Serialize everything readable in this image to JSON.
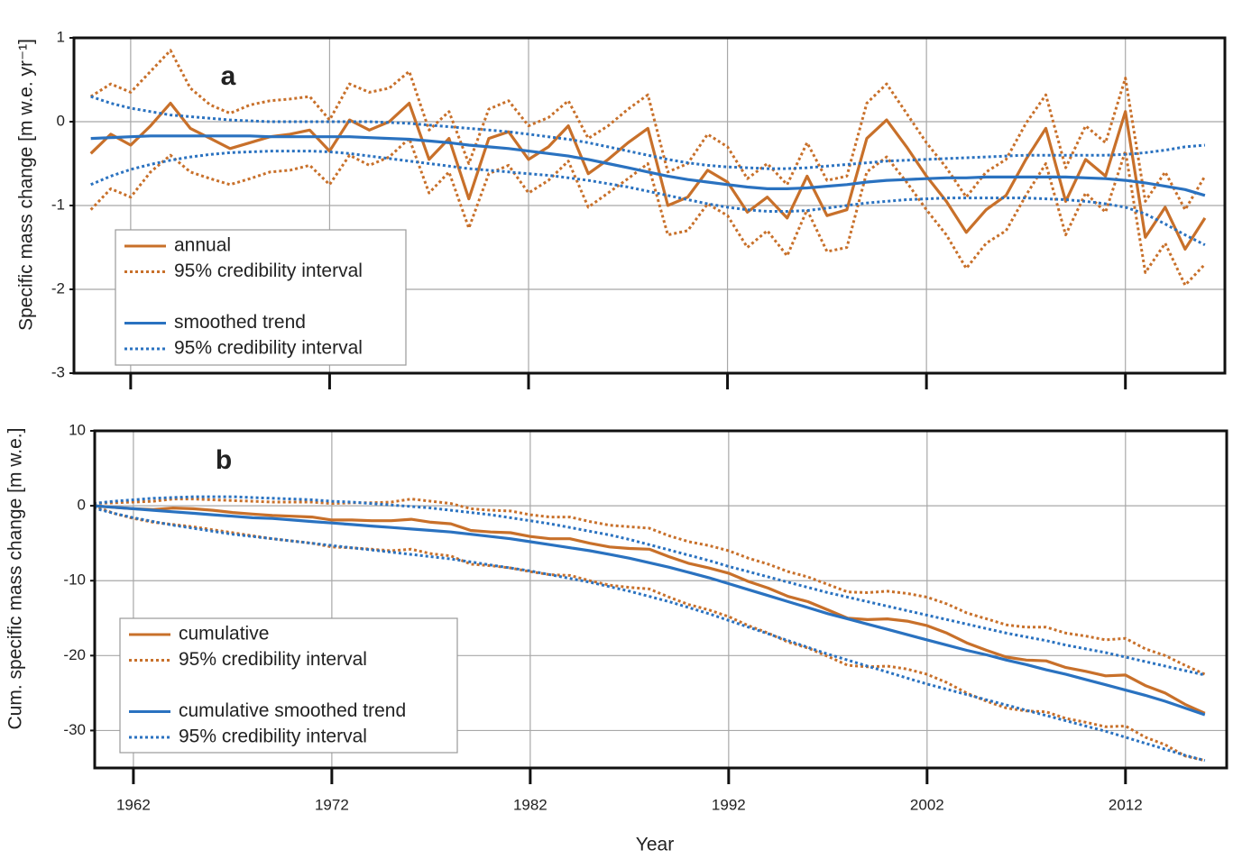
{
  "chart_data": [
    {
      "type": "line",
      "label": "a",
      "ylabel": "Specific mass change [m w.e. yr⁻¹]",
      "x": [
        1960,
        1961,
        1962,
        1963,
        1964,
        1965,
        1966,
        1967,
        1968,
        1969,
        1970,
        1971,
        1972,
        1973,
        1974,
        1975,
        1976,
        1977,
        1978,
        1979,
        1980,
        1981,
        1982,
        1983,
        1984,
        1985,
        1986,
        1987,
        1988,
        1989,
        1990,
        1991,
        1992,
        1993,
        1994,
        1995,
        1996,
        1997,
        1998,
        1999,
        2000,
        2001,
        2002,
        2003,
        2004,
        2005,
        2006,
        2007,
        2008,
        2009,
        2010,
        2011,
        2012,
        2013,
        2014,
        2015,
        2016
      ],
      "xlim": [
        1959.15,
        2017
      ],
      "xticks": [
        1962,
        1972,
        1982,
        1992,
        2002,
        2012
      ],
      "ylim": [
        -3,
        1
      ],
      "yticks": [
        1,
        0,
        -1,
        -2,
        -3
      ],
      "grid": true,
      "legend": "lower left",
      "series": [
        {
          "name": "annual",
          "color": "#c8702a",
          "style": "solid",
          "values": [
            -0.38,
            -0.15,
            -0.28,
            -0.05,
            0.22,
            -0.08,
            -0.2,
            -0.32,
            -0.25,
            -0.18,
            -0.15,
            -0.1,
            -0.35,
            0.02,
            -0.1,
            0.0,
            0.22,
            -0.45,
            -0.2,
            -0.92,
            -0.2,
            -0.12,
            -0.45,
            -0.3,
            -0.05,
            -0.62,
            -0.45,
            -0.25,
            -0.08,
            -1.0,
            -0.9,
            -0.58,
            -0.72,
            -1.08,
            -0.9,
            -1.15,
            -0.65,
            -1.12,
            -1.05,
            -0.2,
            0.02,
            -0.3,
            -0.65,
            -0.95,
            -1.32,
            -1.05,
            -0.88,
            -0.45,
            -0.08,
            -0.95,
            -0.45,
            -0.65,
            0.12,
            -1.38,
            -1.02,
            -1.52,
            -1.15
          ]
        },
        {
          "name": "95% credibility interval",
          "color": "#c8702a",
          "style": "dotted",
          "values": [
            0.3,
            0.45,
            0.35,
            0.6,
            0.85,
            0.4,
            0.2,
            0.1,
            0.2,
            0.25,
            0.27,
            0.3,
            0.02,
            0.45,
            0.35,
            0.4,
            0.6,
            -0.1,
            0.12,
            -0.5,
            0.15,
            0.25,
            -0.05,
            0.05,
            0.25,
            -0.2,
            -0.05,
            0.15,
            0.32,
            -0.6,
            -0.5,
            -0.15,
            -0.3,
            -0.68,
            -0.5,
            -0.75,
            -0.25,
            -0.7,
            -0.65,
            0.22,
            0.45,
            0.1,
            -0.25,
            -0.55,
            -0.9,
            -0.6,
            -0.45,
            -0.02,
            0.32,
            -0.55,
            -0.05,
            -0.25,
            0.52,
            -0.95,
            -0.6,
            -1.05,
            -0.65
          ]
        },
        {
          "color": "#c8702a",
          "style": "dotted",
          "values": [
            -1.05,
            -0.8,
            -0.9,
            -0.6,
            -0.4,
            -0.6,
            -0.68,
            -0.75,
            -0.68,
            -0.6,
            -0.58,
            -0.52,
            -0.75,
            -0.4,
            -0.52,
            -0.42,
            -0.2,
            -0.85,
            -0.6,
            -1.27,
            -0.62,
            -0.52,
            -0.85,
            -0.7,
            -0.47,
            -1.02,
            -0.85,
            -0.68,
            -0.5,
            -1.35,
            -1.3,
            -0.98,
            -1.12,
            -1.5,
            -1.3,
            -1.6,
            -1.05,
            -1.55,
            -1.5,
            -0.6,
            -0.42,
            -0.72,
            -1.05,
            -1.35,
            -1.75,
            -1.45,
            -1.3,
            -0.88,
            -0.5,
            -1.35,
            -0.85,
            -1.08,
            -0.35,
            -1.8,
            -1.45,
            -1.95,
            -1.7
          ]
        },
        {
          "name": "smoothed trend",
          "color": "#2a72c0",
          "style": "solid",
          "values": [
            -0.2,
            -0.19,
            -0.18,
            -0.17,
            -0.17,
            -0.17,
            -0.17,
            -0.17,
            -0.17,
            -0.18,
            -0.18,
            -0.18,
            -0.18,
            -0.18,
            -0.19,
            -0.2,
            -0.21,
            -0.23,
            -0.25,
            -0.28,
            -0.3,
            -0.32,
            -0.35,
            -0.38,
            -0.41,
            -0.45,
            -0.5,
            -0.55,
            -0.6,
            -0.65,
            -0.69,
            -0.72,
            -0.75,
            -0.78,
            -0.8,
            -0.8,
            -0.79,
            -0.77,
            -0.75,
            -0.72,
            -0.7,
            -0.69,
            -0.68,
            -0.67,
            -0.67,
            -0.66,
            -0.66,
            -0.66,
            -0.66,
            -0.66,
            -0.67,
            -0.68,
            -0.7,
            -0.73,
            -0.77,
            -0.81,
            -0.88
          ]
        },
        {
          "name": "95% credibility interval",
          "color": "#2a72c0",
          "style": "dotted",
          "values": [
            0.3,
            0.22,
            0.16,
            0.12,
            0.08,
            0.06,
            0.04,
            0.02,
            0.01,
            0.0,
            0.0,
            0.0,
            0.0,
            0.0,
            0.0,
            -0.01,
            -0.02,
            -0.04,
            -0.06,
            -0.08,
            -0.1,
            -0.12,
            -0.15,
            -0.18,
            -0.21,
            -0.25,
            -0.3,
            -0.35,
            -0.4,
            -0.45,
            -0.49,
            -0.52,
            -0.54,
            -0.55,
            -0.56,
            -0.56,
            -0.55,
            -0.53,
            -0.51,
            -0.49,
            -0.47,
            -0.46,
            -0.45,
            -0.44,
            -0.43,
            -0.42,
            -0.41,
            -0.4,
            -0.4,
            -0.4,
            -0.4,
            -0.4,
            -0.39,
            -0.37,
            -0.34,
            -0.3,
            -0.28
          ]
        },
        {
          "color": "#2a72c0",
          "style": "dotted",
          "values": [
            -0.75,
            -0.65,
            -0.57,
            -0.51,
            -0.46,
            -0.42,
            -0.39,
            -0.37,
            -0.36,
            -0.35,
            -0.35,
            -0.35,
            -0.36,
            -0.38,
            -0.41,
            -0.44,
            -0.47,
            -0.5,
            -0.53,
            -0.56,
            -0.58,
            -0.6,
            -0.62,
            -0.64,
            -0.67,
            -0.7,
            -0.74,
            -0.78,
            -0.83,
            -0.88,
            -0.93,
            -0.98,
            -1.02,
            -1.05,
            -1.07,
            -1.07,
            -1.06,
            -1.03,
            -1.0,
            -0.97,
            -0.95,
            -0.93,
            -0.92,
            -0.91,
            -0.91,
            -0.91,
            -0.91,
            -0.91,
            -0.92,
            -0.93,
            -0.95,
            -0.98,
            -1.02,
            -1.1,
            -1.22,
            -1.35,
            -1.47
          ]
        }
      ]
    },
    {
      "type": "line",
      "label": "b",
      "ylabel": "Cum. specific mass change [m w.e.]",
      "xlabel": "Year",
      "x": [
        1960,
        1961,
        1962,
        1963,
        1964,
        1965,
        1966,
        1967,
        1968,
        1969,
        1970,
        1971,
        1972,
        1973,
        1974,
        1975,
        1976,
        1977,
        1978,
        1979,
        1980,
        1981,
        1982,
        1983,
        1984,
        1985,
        1986,
        1987,
        1988,
        1989,
        1990,
        1991,
        1992,
        1993,
        1994,
        1995,
        1996,
        1997,
        1998,
        1999,
        2000,
        2001,
        2002,
        2003,
        2004,
        2005,
        2006,
        2007,
        2008,
        2009,
        2010,
        2011,
        2012,
        2013,
        2014,
        2015,
        2016
      ],
      "xlim": [
        1960.05,
        2017.1
      ],
      "xticks": [
        1962,
        1972,
        1982,
        1992,
        2002,
        2012
      ],
      "ylim": [
        -35,
        10
      ],
      "yticks": [
        10,
        0,
        -10,
        -20,
        -30
      ],
      "grid": true,
      "legend": "lower left",
      "series": [
        {
          "name": "cumulative",
          "color": "#c8702a",
          "style": "solid",
          "values": [
            0,
            -0.2,
            -0.4,
            -0.5,
            -0.3,
            -0.4,
            -0.6,
            -0.9,
            -1.1,
            -1.3,
            -1.4,
            -1.5,
            -1.9,
            -1.9,
            -2.0,
            -2.0,
            -1.8,
            -2.2,
            -2.4,
            -3.3,
            -3.5,
            -3.6,
            -4.1,
            -4.4,
            -4.4,
            -5.0,
            -5.5,
            -5.7,
            -5.8,
            -6.8,
            -7.7,
            -8.3,
            -9.0,
            -10.1,
            -11.0,
            -12.1,
            -12.8,
            -13.9,
            -15.0,
            -15.2,
            -15.1,
            -15.4,
            -16.0,
            -17.0,
            -18.3,
            -19.3,
            -20.2,
            -20.6,
            -20.7,
            -21.6,
            -22.1,
            -22.7,
            -22.6,
            -24.0,
            -25.0,
            -26.5,
            -27.7
          ]
        },
        {
          "name": "95% credibility interval",
          "color": "#c8702a",
          "style": "dotted",
          "values": [
            0.3,
            0.4,
            0.5,
            0.6,
            0.9,
            0.9,
            0.8,
            0.7,
            0.6,
            0.5,
            0.5,
            0.5,
            0.3,
            0.4,
            0.4,
            0.5,
            0.9,
            0.6,
            0.3,
            -0.4,
            -0.6,
            -0.7,
            -1.2,
            -1.5,
            -1.5,
            -2.1,
            -2.6,
            -2.8,
            -3.0,
            -4.0,
            -4.8,
            -5.3,
            -6.0,
            -7.0,
            -7.8,
            -8.8,
            -9.5,
            -10.5,
            -11.5,
            -11.6,
            -11.4,
            -11.7,
            -12.2,
            -13.1,
            -14.3,
            -15.1,
            -15.9,
            -16.2,
            -16.2,
            -17.0,
            -17.4,
            -17.9,
            -17.7,
            -19.1,
            -20.0,
            -21.3,
            -22.5
          ]
        },
        {
          "color": "#c8702a",
          "style": "dotted",
          "values": [
            0,
            -1.0,
            -1.7,
            -2.2,
            -2.5,
            -2.8,
            -3.2,
            -3.6,
            -4.0,
            -4.4,
            -4.7,
            -5.0,
            -5.5,
            -5.6,
            -5.8,
            -6.0,
            -5.8,
            -6.4,
            -6.7,
            -7.8,
            -8.0,
            -8.3,
            -8.8,
            -9.2,
            -9.3,
            -10.0,
            -10.6,
            -10.9,
            -11.1,
            -12.2,
            -13.2,
            -13.9,
            -14.8,
            -16.0,
            -17.0,
            -18.2,
            -19.0,
            -20.1,
            -21.3,
            -21.5,
            -21.4,
            -21.8,
            -22.5,
            -23.6,
            -25.0,
            -26.1,
            -27.0,
            -27.4,
            -27.5,
            -28.4,
            -28.9,
            -29.5,
            -29.4,
            -30.9,
            -31.9,
            -33.4,
            -34.0
          ]
        },
        {
          "name": "cumulative smoothed trend",
          "color": "#2a72c0",
          "style": "solid",
          "values": [
            0,
            -0.2,
            -0.4,
            -0.6,
            -0.8,
            -1.0,
            -1.2,
            -1.4,
            -1.6,
            -1.7,
            -1.9,
            -2.1,
            -2.3,
            -2.5,
            -2.7,
            -2.9,
            -3.1,
            -3.3,
            -3.5,
            -3.8,
            -4.1,
            -4.4,
            -4.8,
            -5.2,
            -5.6,
            -6.0,
            -6.5,
            -7.0,
            -7.6,
            -8.2,
            -8.9,
            -9.6,
            -10.4,
            -11.2,
            -12.0,
            -12.8,
            -13.6,
            -14.4,
            -15.1,
            -15.8,
            -16.5,
            -17.2,
            -17.9,
            -18.6,
            -19.3,
            -19.9,
            -20.6,
            -21.2,
            -21.9,
            -22.5,
            -23.2,
            -23.9,
            -24.6,
            -25.3,
            -26.1,
            -27.0,
            -27.9
          ]
        },
        {
          "name": "95% credibility interval",
          "color": "#2a72c0",
          "style": "dotted",
          "values": [
            0.3,
            0.6,
            0.8,
            1.0,
            1.1,
            1.2,
            1.2,
            1.2,
            1.1,
            1.0,
            0.9,
            0.8,
            0.6,
            0.5,
            0.3,
            0.1,
            -0.1,
            -0.3,
            -0.6,
            -0.9,
            -1.2,
            -1.6,
            -2.0,
            -2.4,
            -2.9,
            -3.4,
            -3.9,
            -4.5,
            -5.2,
            -5.9,
            -6.6,
            -7.3,
            -8.1,
            -8.8,
            -9.5,
            -10.2,
            -10.9,
            -11.6,
            -12.2,
            -12.8,
            -13.4,
            -14.0,
            -14.6,
            -15.2,
            -15.8,
            -16.4,
            -17.0,
            -17.5,
            -18.0,
            -18.6,
            -19.1,
            -19.6,
            -20.2,
            -20.8,
            -21.4,
            -22.0,
            -22.6
          ]
        },
        {
          "color": "#2a72c0",
          "style": "dotted",
          "values": [
            -0.3,
            -1.0,
            -1.6,
            -2.1,
            -2.6,
            -3.0,
            -3.4,
            -3.8,
            -4.1,
            -4.4,
            -4.7,
            -5.0,
            -5.3,
            -5.6,
            -5.9,
            -6.2,
            -6.5,
            -6.8,
            -7.1,
            -7.5,
            -7.9,
            -8.3,
            -8.7,
            -9.2,
            -9.7,
            -10.2,
            -10.8,
            -11.4,
            -12.1,
            -12.8,
            -13.6,
            -14.4,
            -15.3,
            -16.2,
            -17.1,
            -18.0,
            -18.9,
            -19.8,
            -20.6,
            -21.4,
            -22.2,
            -23.0,
            -23.8,
            -24.5,
            -25.2,
            -25.9,
            -26.6,
            -27.3,
            -28.0,
            -28.7,
            -29.4,
            -30.1,
            -30.9,
            -31.7,
            -32.5,
            -33.3,
            -34.0
          ]
        }
      ]
    }
  ]
}
